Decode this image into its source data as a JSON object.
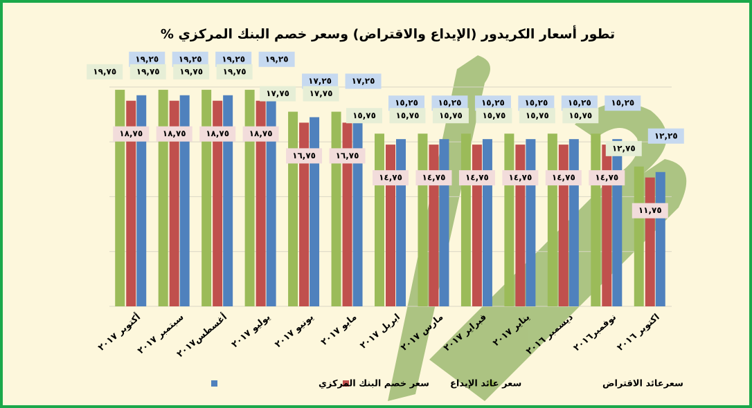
{
  "chart_data": {
    "type": "bar",
    "title": "تطور أسعار الكريدور (الإيداع والاقتراض) وسعر خصم البنك المركزي %",
    "categories": [
      "أكتوبر ٢٠١٧",
      "سبتمبر ٢٠١٧",
      "أغسطس٢٠١٧",
      "يوليو ٢٠١٧",
      "يونيو ٢٠١٧",
      "مايو ٢٠١٧",
      "ابريل ٢٠١٧",
      "مارس ٢٠١٧",
      "فبراير ٢٠١٧",
      "يناير ٢٠١٧",
      "ديسمبر ٢٠١٦",
      "نوفمبر٢٠١٦",
      "اكتوبر ٢٠١٦"
    ],
    "series": [
      {
        "name": "سعرعائد  الاقتراض",
        "color": "#9bbb59",
        "values": [
          19.75,
          19.75,
          19.75,
          19.75,
          17.75,
          17.75,
          15.75,
          15.75,
          15.75,
          15.75,
          15.75,
          15.75,
          12.75
        ],
        "value_labels": [
          "١٩,٧٥",
          "١٩,٧٥",
          "١٩,٧٥",
          "١٩,٧٥",
          "١٧,٧٥",
          "١٧,٧٥",
          "١٥,٧٥",
          "١٥,٧٥",
          "١٥,٧٥",
          "١٥,٧٥",
          "١٥,٧٥",
          "١٥,٧٥",
          "١٢,٧٥"
        ]
      },
      {
        "name": "سعر عائد الإيداع",
        "color": "#c0504d",
        "values": [
          18.75,
          18.75,
          18.75,
          18.75,
          16.75,
          16.75,
          14.75,
          14.75,
          14.75,
          14.75,
          14.75,
          14.75,
          11.75
        ],
        "value_labels": [
          "١٨,٧٥",
          "١٨,٧٥",
          "١٨,٧٥",
          "١٨,٧٥",
          "١٦,٧٥",
          "١٦,٧٥",
          "١٤,٧٥",
          "١٤,٧٥",
          "١٤,٧٥",
          "١٤,٧٥",
          "١٤,٧٥",
          "١٤,٧٥",
          "١١,٧٥"
        ]
      },
      {
        "name": "سعر خصم البنك المركزي",
        "color": "#4f81bd",
        "values": [
          19.25,
          19.25,
          19.25,
          19.25,
          17.25,
          17.25,
          15.25,
          15.25,
          15.25,
          15.25,
          15.25,
          15.25,
          12.25
        ],
        "value_labels": [
          "١٩,٢٥",
          "١٩,٢٥",
          "١٩,٢٥",
          "١٩,٢٥",
          "١٧,٢٥",
          "١٧,٢٥",
          "١٥,٢٥",
          "١٥,٢٥",
          "١٥,٢٥",
          "١٥,٢٥",
          "١٥,٢٥",
          "١٥,٢٥",
          "١٢,٢٥"
        ]
      }
    ],
    "ylim": [
      0,
      21
    ],
    "yticks": [
      0,
      5,
      10,
      15,
      20
    ],
    "grid": true
  }
}
